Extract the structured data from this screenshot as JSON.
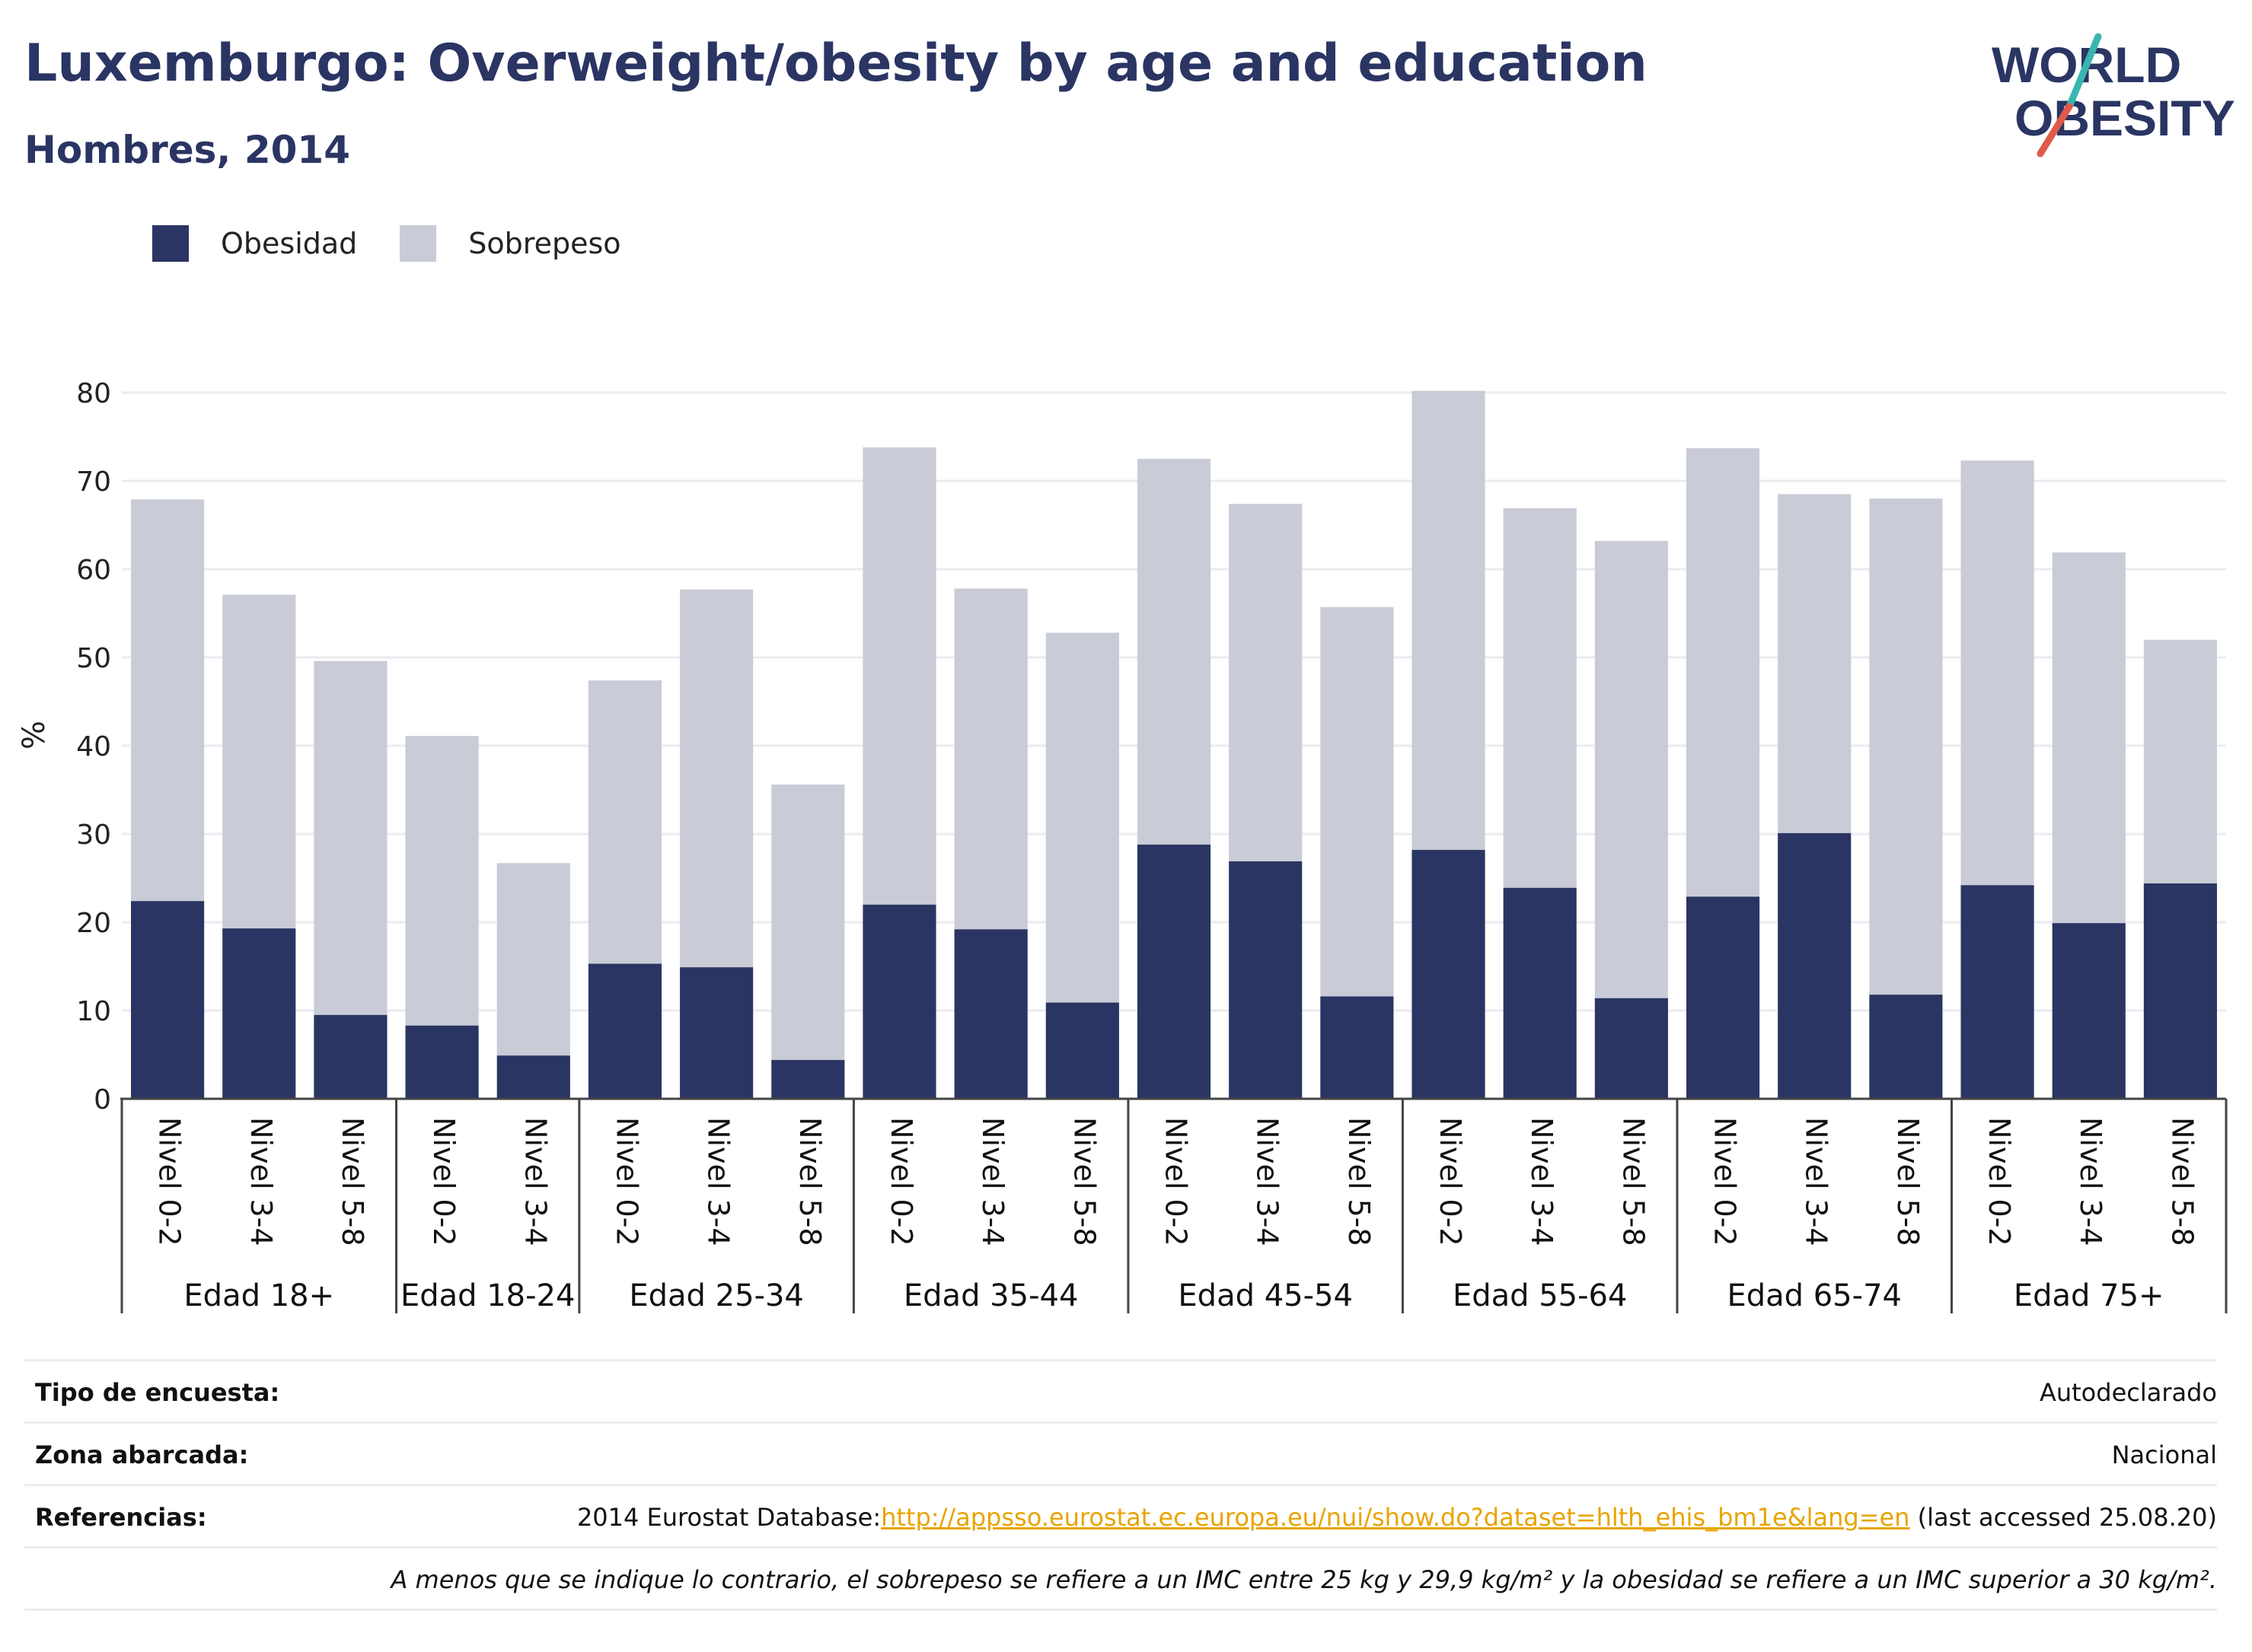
{
  "title": "Luxemburgo: Overweight/obesity by age and education",
  "subtitle": "Hombres, 2014",
  "logo": {
    "line1": "WORLD",
    "line2": "OBESITY"
  },
  "legend": {
    "obesity_label": "Obesidad",
    "overweight_label": "Sobrepeso"
  },
  "colors": {
    "obesity": "#2a3563",
    "overweight": "#c9cbd6",
    "title": "#2a3563",
    "link": "#e8a400"
  },
  "chart_data": {
    "type": "bar",
    "stacked": true,
    "ylabel": "%",
    "ylim": [
      0,
      80
    ],
    "yticks": [
      0,
      10,
      20,
      30,
      40,
      50,
      60,
      70,
      80
    ],
    "grid": true,
    "legend_position": "top-left",
    "groups": [
      {
        "label": "Edad 18+",
        "categories": [
          "Nivel 0-2",
          "Nivel 3-4",
          "Nivel 5-8"
        ]
      },
      {
        "label": "Edad 18-24",
        "categories": [
          "Nivel 0-2",
          "Nivel 3-4"
        ]
      },
      {
        "label": "Edad 25-34",
        "categories": [
          "Nivel 0-2",
          "Nivel 3-4",
          "Nivel 5-8"
        ]
      },
      {
        "label": "Edad 35-44",
        "categories": [
          "Nivel 0-2",
          "Nivel 3-4",
          "Nivel 5-8"
        ]
      },
      {
        "label": "Edad 45-54",
        "categories": [
          "Nivel 0-2",
          "Nivel 3-4",
          "Nivel 5-8"
        ]
      },
      {
        "label": "Edad 55-64",
        "categories": [
          "Nivel 0-2",
          "Nivel 3-4",
          "Nivel 5-8"
        ]
      },
      {
        "label": "Edad 65-74",
        "categories": [
          "Nivel 0-2",
          "Nivel 3-4",
          "Nivel 5-8"
        ]
      },
      {
        "label": "Edad 75+",
        "categories": [
          "Nivel 0-2",
          "Nivel 3-4",
          "Nivel 5-8"
        ]
      }
    ],
    "series": [
      {
        "name": "Obesidad",
        "values": [
          22.4,
          19.3,
          9.5,
          8.3,
          4.9,
          15.3,
          14.9,
          4.4,
          22.0,
          19.2,
          10.9,
          28.8,
          26.9,
          11.6,
          28.2,
          23.9,
          11.4,
          22.9,
          30.1,
          11.8,
          24.2,
          19.9,
          24.4
        ]
      },
      {
        "name": "Sobrepeso",
        "values": [
          45.5,
          37.8,
          40.1,
          32.8,
          21.8,
          32.1,
          42.8,
          31.2,
          51.8,
          38.6,
          41.9,
          43.7,
          40.5,
          44.1,
          52.0,
          43.0,
          51.8,
          50.8,
          38.4,
          56.2,
          48.1,
          42.0,
          27.6
        ]
      }
    ]
  },
  "info": {
    "survey_type_label": "Tipo de encuesta:",
    "survey_type_value": "Autodeclarado",
    "area_label": "Zona abarcada:",
    "area_value": "Nacional",
    "references_label": "Referencias:",
    "references_prefix": "2014 Eurostat Database:",
    "references_link": "http://appsso.eurostat.ec.europa.eu/nui/show.do?dataset=hlth_ehis_bm1e&lang=en",
    "references_suffix": " (last accessed 25.08.20)",
    "note": "A menos que se indique lo contrario, el sobrepeso se refiere a un IMC entre 25 kg y 29,9 kg/m² y la obesidad se refiere a un IMC superior a 30 kg/m²."
  }
}
